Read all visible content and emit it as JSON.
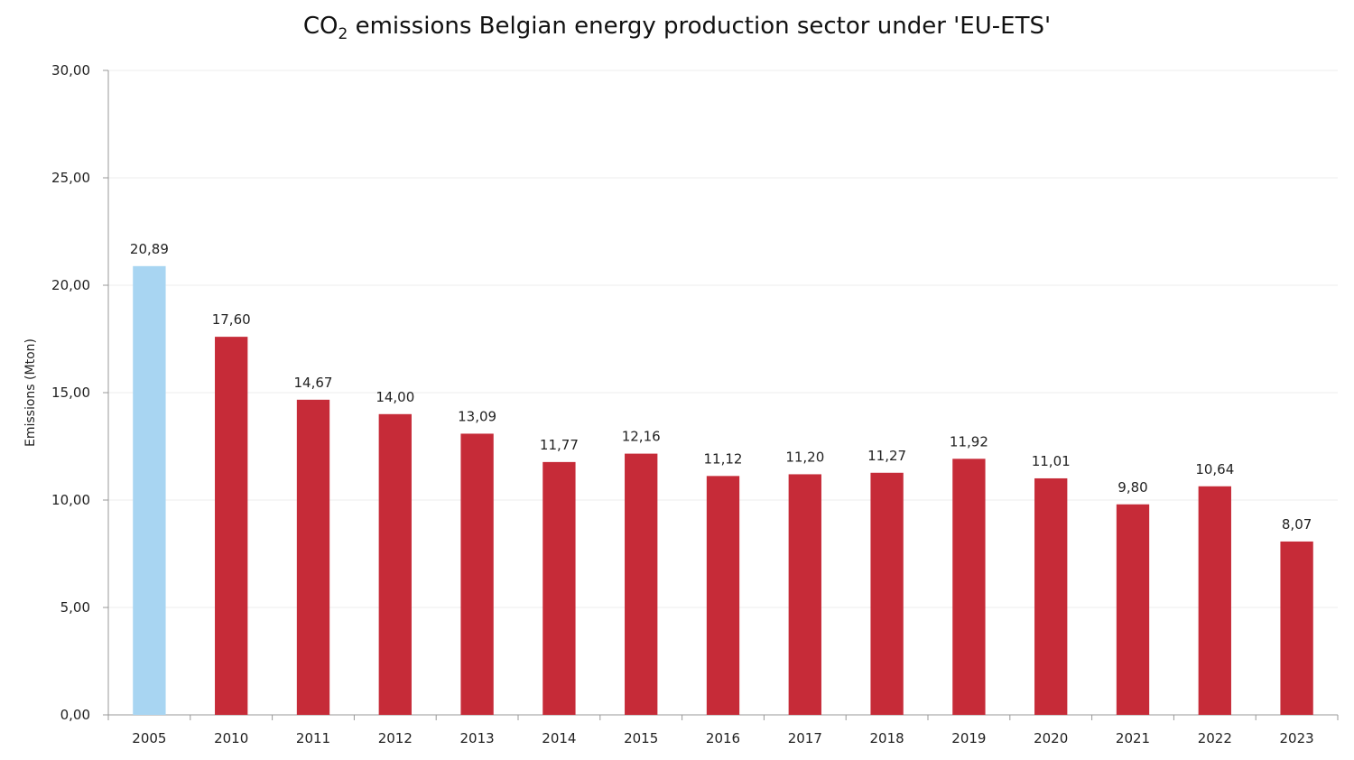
{
  "chart_data": {
    "type": "bar",
    "title_main": "CO",
    "title_sub": "2",
    "title_rest": " emissions Belgian energy production sector under 'EU-ETS'",
    "ylabel": "Emissions (Mton)",
    "xlabel": "",
    "ylim": [
      0,
      30
    ],
    "y_ticks": [
      0,
      5,
      10,
      15,
      20,
      25,
      30
    ],
    "y_tick_labels": [
      "0,00",
      "5,00",
      "10,00",
      "15,00",
      "20,00",
      "25,00",
      "30,00"
    ],
    "grid": true,
    "legend": "none",
    "categories": [
      "2005",
      "2010",
      "2011",
      "2012",
      "2013",
      "2014",
      "2015",
      "2016",
      "2017",
      "2018",
      "2019",
      "2020",
      "2021",
      "2022",
      "2023"
    ],
    "values": [
      20.89,
      17.6,
      14.67,
      14.0,
      13.09,
      11.77,
      12.16,
      11.12,
      11.2,
      11.27,
      11.92,
      11.01,
      9.8,
      10.64,
      8.07
    ],
    "value_labels": [
      "20,89",
      "17,60",
      "14,67",
      "14,00",
      "13,09",
      "11,77",
      "12,16",
      "11,12",
      "11,20",
      "11,27",
      "11,92",
      "11,01",
      "9,80",
      "10,64",
      "8,07"
    ],
    "colors": {
      "base_year": "#a8d5f2",
      "other_years": "#c62b38",
      "axis": "#999999",
      "grid": "#eeeeee"
    }
  }
}
